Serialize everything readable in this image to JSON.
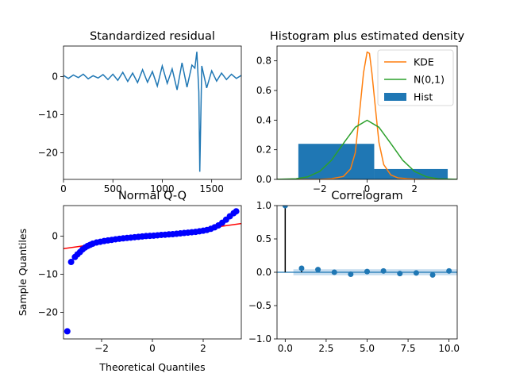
{
  "colors": {
    "series_blue": "#1f77b4",
    "kde_orange": "#ff7f0e",
    "normal_green": "#2ca02c",
    "qq_points": "#0000ff",
    "qq_line": "#ff0000",
    "confidence_band": "#9fc4e4",
    "axes": "#000000"
  },
  "chart_data": [
    {
      "id": "standardized-residual",
      "type": "line",
      "title": "Standardized residual",
      "xlabel": "",
      "ylabel": "",
      "xlim": [
        0,
        1800
      ],
      "ylim": [
        -27,
        8
      ],
      "x_ticks": [
        0,
        500,
        1000,
        1500
      ],
      "x_tick_labels": [
        "0",
        "500",
        "1000",
        "1500"
      ],
      "y_ticks": [
        0,
        -10,
        -20
      ],
      "y_tick_labels": [
        "0",
        "−10",
        "−20"
      ],
      "series": [
        {
          "x": [
            0,
            50,
            100,
            150,
            200,
            250,
            300,
            350,
            400,
            450,
            500,
            550,
            600,
            650,
            700,
            750,
            800,
            850,
            900,
            950,
            1000,
            1050,
            1100,
            1150,
            1200,
            1250,
            1300,
            1330,
            1350,
            1370,
            1380,
            1400,
            1450,
            1500,
            1550,
            1600,
            1650,
            1700,
            1750,
            1800
          ],
          "y": [
            0.3,
            -0.5,
            0.4,
            -0.3,
            0.6,
            -0.6,
            0.2,
            -0.4,
            0.5,
            -0.8,
            0.6,
            -1.0,
            1.1,
            -1.3,
            0.9,
            -1.6,
            1.8,
            -1.5,
            1.3,
            -2.5,
            2.8,
            -1.8,
            2.0,
            -3.5,
            3.6,
            -2.8,
            3.0,
            2.2,
            6.5,
            -4.0,
            -25.0,
            2.8,
            -3.0,
            1.5,
            -1.2,
            0.9,
            -0.8,
            0.6,
            -0.5,
            0.3
          ]
        }
      ],
      "grid": false
    },
    {
      "id": "histogram-density",
      "type": "bar",
      "title": "Histogram plus estimated density",
      "xlabel": "",
      "ylabel": "",
      "xlim": [
        -3.8,
        3.8
      ],
      "ylim": [
        0,
        0.9
      ],
      "x_ticks": [
        -2,
        0,
        2
      ],
      "x_tick_labels": [
        "−2",
        "0",
        "2"
      ],
      "y_ticks": [
        0,
        0.2,
        0.4,
        0.6,
        0.8
      ],
      "y_tick_labels": [
        "0.0",
        "0.2",
        "0.4",
        "0.6",
        "0.8"
      ],
      "legend": {
        "position": "top-right",
        "entries": [
          "KDE",
          "N(0,1)",
          "Hist"
        ]
      },
      "hist": {
        "bin_edges": [
          -2.9,
          0.3,
          3.4
        ],
        "values": [
          0.24,
          0.07
        ]
      },
      "series": [
        {
          "name": "KDE",
          "x": [
            -3.8,
            -2.0,
            -1.5,
            -1.0,
            -0.7,
            -0.5,
            -0.3,
            -0.15,
            0.0,
            0.1,
            0.2,
            0.35,
            0.5,
            0.7,
            1.0,
            1.3,
            1.7,
            2.2,
            3.8
          ],
          "y": [
            0.0,
            0.0,
            0.005,
            0.02,
            0.07,
            0.18,
            0.48,
            0.72,
            0.86,
            0.85,
            0.72,
            0.48,
            0.25,
            0.1,
            0.03,
            0.01,
            0.005,
            0.0,
            0.0
          ]
        },
        {
          "name": "N(0,1)",
          "x": [
            -3.8,
            -3.0,
            -2.5,
            -2.0,
            -1.5,
            -1.0,
            -0.5,
            0.0,
            0.5,
            1.0,
            1.5,
            2.0,
            2.5,
            3.0,
            3.8
          ],
          "y": [
            0.0003,
            0.0044,
            0.0175,
            0.054,
            0.1295,
            0.242,
            0.352,
            0.399,
            0.352,
            0.242,
            0.1295,
            0.054,
            0.0175,
            0.0044,
            0.0003
          ]
        }
      ],
      "grid": false
    },
    {
      "id": "normal-qq",
      "type": "scatter",
      "title": "Normal Q-Q",
      "xlabel": "Theoretical Quantiles",
      "ylabel": "Sample Quantiles",
      "xlim": [
        -3.5,
        3.5
      ],
      "ylim": [
        -27,
        8
      ],
      "x_ticks": [
        -2,
        0,
        2
      ],
      "x_tick_labels": [
        "−2",
        "0",
        "2"
      ],
      "y_ticks": [
        0,
        -10,
        -20
      ],
      "y_tick_labels": [
        "0",
        "−10",
        "−20"
      ],
      "points": {
        "x": [
          -3.35,
          -3.2,
          -3.05,
          -2.95,
          -2.85,
          -2.75,
          -2.65,
          -2.55,
          -2.45,
          -2.35,
          -2.2,
          -2.05,
          -1.9,
          -1.75,
          -1.6,
          -1.45,
          -1.3,
          -1.15,
          -1.0,
          -0.85,
          -0.7,
          -0.55,
          -0.4,
          -0.25,
          -0.1,
          0.05,
          0.2,
          0.35,
          0.5,
          0.65,
          0.8,
          0.95,
          1.1,
          1.25,
          1.4,
          1.55,
          1.7,
          1.85,
          2.0,
          2.15,
          2.3,
          2.45,
          2.6,
          2.75,
          2.9,
          3.05,
          3.2,
          3.3
        ],
        "y": [
          -25.0,
          -6.8,
          -5.5,
          -4.8,
          -4.2,
          -3.5,
          -3.0,
          -2.6,
          -2.3,
          -2.0,
          -1.7,
          -1.5,
          -1.3,
          -1.15,
          -1.0,
          -0.85,
          -0.72,
          -0.6,
          -0.5,
          -0.4,
          -0.3,
          -0.2,
          -0.1,
          0.0,
          0.05,
          0.1,
          0.2,
          0.3,
          0.35,
          0.45,
          0.5,
          0.6,
          0.7,
          0.8,
          0.9,
          1.0,
          1.1,
          1.25,
          1.4,
          1.6,
          1.9,
          2.3,
          2.8,
          3.5,
          4.3,
          5.2,
          6.0,
          6.5
        ]
      },
      "reference_line": {
        "x": [
          -3.5,
          3.5
        ],
        "y": [
          -3.3,
          3.3
        ]
      },
      "grid": false
    },
    {
      "id": "correlogram",
      "type": "bar",
      "title": "Correlogram",
      "xlabel": "",
      "ylabel": "",
      "xlim": [
        -0.5,
        10.5
      ],
      "ylim": [
        -1.0,
        1.0
      ],
      "x_ticks": [
        0,
        2.5,
        5,
        7.5,
        10
      ],
      "x_tick_labels": [
        "0.0",
        "2.5",
        "5.0",
        "7.5",
        "10.0"
      ],
      "y_ticks": [
        1.0,
        0.5,
        0.0,
        -0.5,
        -1.0
      ],
      "y_tick_labels": [
        "1.0",
        "0.5",
        "0.0",
        "−0.5",
        "−1.0"
      ],
      "lags": [
        0,
        1,
        2,
        3,
        4,
        5,
        6,
        7,
        8,
        9,
        10
      ],
      "values": [
        1.0,
        0.06,
        0.04,
        0.0,
        -0.03,
        0.01,
        0.02,
        -0.02,
        -0.01,
        -0.04,
        0.02
      ],
      "confidence_band": {
        "lower": -0.045,
        "upper": 0.045
      },
      "grid": false
    }
  ]
}
